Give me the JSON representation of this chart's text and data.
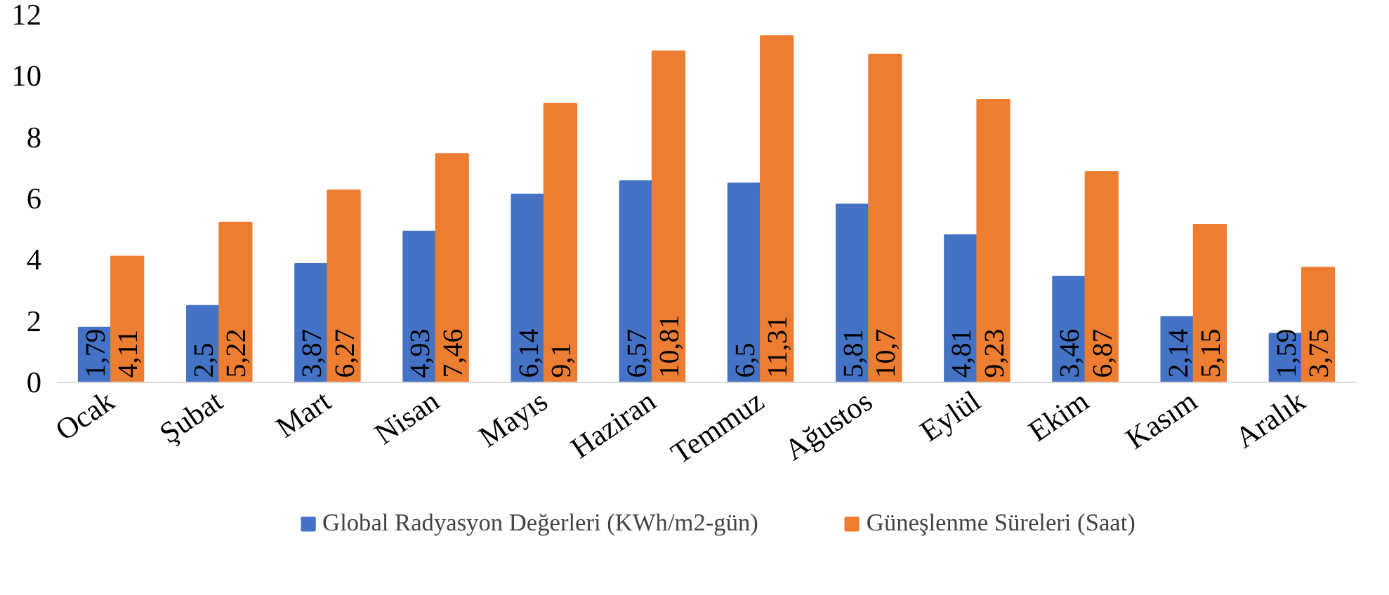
{
  "chart_data": {
    "type": "bar",
    "categories": [
      "Ocak",
      "Şubat",
      "Mart",
      "Nisan",
      "Mayıs",
      "Haziran",
      "Temmuz",
      "Ağustos",
      "Eylül",
      "Ekim",
      "Kasım",
      "Aralık"
    ],
    "series": [
      {
        "name": "Global Radyasyon Değerleri (KWh/m2-gün)",
        "color": "#4472c4",
        "values": [
          1.79,
          2.5,
          3.87,
          4.93,
          6.14,
          6.57,
          6.5,
          5.81,
          4.81,
          3.46,
          2.14,
          1.59
        ],
        "value_labels": [
          "1,79",
          "2,5",
          "3,87",
          "4,93",
          "6,14",
          "6,57",
          "6,5",
          "5,81",
          "4,81",
          "3,46",
          "2,14",
          "1,59"
        ]
      },
      {
        "name": "Güneşlenme Süreleri (Saat)",
        "color": "#ed7d31",
        "values": [
          4.11,
          5.22,
          6.27,
          7.46,
          9.1,
          10.81,
          11.31,
          10.7,
          9.23,
          6.87,
          5.15,
          3.75
        ],
        "value_labels": [
          "4,11",
          "5,22",
          "6,27",
          "7,46",
          "9,1",
          "10,81",
          "11,31",
          "10,7",
          "9,23",
          "6,87",
          "5,15",
          "3,75"
        ]
      }
    ],
    "ylim": [
      0,
      12
    ],
    "yticks": [
      0,
      2,
      4,
      6,
      8,
      10,
      12
    ],
    "grid": false,
    "legend": "bottom"
  }
}
